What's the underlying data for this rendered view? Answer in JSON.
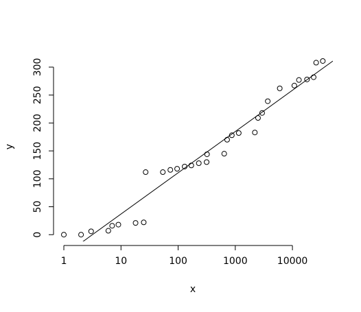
{
  "chart_data": {
    "type": "scatter",
    "xlabel": "x",
    "ylabel": "y",
    "log_x": true,
    "x": [
      1,
      2,
      3,
      6,
      7,
      9,
      18,
      25,
      27,
      54,
      73,
      96,
      130,
      170,
      230,
      315,
      320,
      640,
      720,
      870,
      1150,
      2200,
      2500,
      2950,
      3700,
      6000,
      10800,
      13000,
      18000,
      23500,
      26000,
      34000
    ],
    "values": [
      0,
      0,
      6,
      7,
      16,
      18,
      21,
      22,
      112,
      112,
      116,
      118,
      122,
      124,
      128,
      130,
      144,
      145,
      170,
      178,
      182,
      183,
      209,
      218,
      239,
      262,
      267,
      277,
      278,
      282,
      308,
      311
    ],
    "color": "#000000",
    "fit": {
      "intercept": -37,
      "slope": 73.9
    },
    "xlim": [
      0.66,
      51000
    ],
    "ylim": [
      -12,
      322
    ],
    "xticks": [
      1,
      10,
      100,
      1000,
      10000
    ],
    "yticks": [
      0,
      50,
      100,
      150,
      200,
      250,
      300
    ]
  }
}
